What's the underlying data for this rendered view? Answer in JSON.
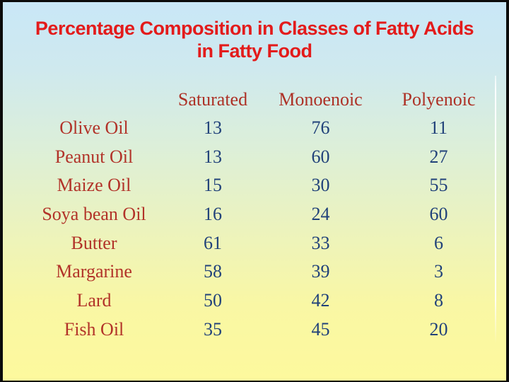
{
  "slide": {
    "title_line1": "Percentage Composition in Classes of Fatty Acids",
    "title_line2": "in Fatty Food"
  },
  "chart_data": {
    "type": "table",
    "title": "Percentage Composition in Classes of Fatty Acids in Fatty Food",
    "columns": [
      "Saturated",
      "Monoenoic",
      "Polyenoic"
    ],
    "corner_header": "",
    "rows": [
      {
        "label": "Olive Oil",
        "values": [
          13,
          76,
          11
        ]
      },
      {
        "label": "Peanut Oil",
        "values": [
          13,
          60,
          27
        ]
      },
      {
        "label": "Maize Oil",
        "values": [
          15,
          30,
          55
        ]
      },
      {
        "label": "Soya bean Oil",
        "values": [
          16,
          24,
          60
        ]
      },
      {
        "label": "Butter",
        "values": [
          61,
          33,
          6
        ]
      },
      {
        "label": "Margarine",
        "values": [
          58,
          39,
          3
        ]
      },
      {
        "label": "Lard",
        "values": [
          50,
          42,
          8
        ]
      },
      {
        "label": "Fish Oil",
        "values": [
          35,
          45,
          20
        ]
      }
    ],
    "layout": {
      "grid": "off",
      "legend": "none",
      "value_unit": "percent"
    }
  },
  "colors": {
    "title_red": "#e31b1b",
    "table_label_red": "#b23329",
    "table_header_red": "#ad3126",
    "number_blue": "#21427a",
    "background_top": "#c9e7f7",
    "background_bottom": "#fdf99d",
    "frame_black": "#0b0b0b",
    "rule_white": "#ffffff"
  }
}
